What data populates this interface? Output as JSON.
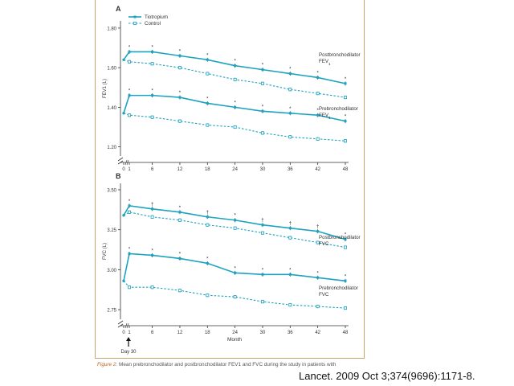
{
  "caption": {
    "figure_label": "Figure 2:",
    "text": "Mean prebronchodilator and postbronchodilator FEV1 and FVC during the study in patients with"
  },
  "citation": "Lancet. 2009 Oct 3;374(9696):1171-8.",
  "colors": {
    "series": "#1da3bf",
    "axis": "#333333",
    "text": "#333333"
  },
  "chart_data": [
    {
      "panel": "A",
      "type": "line",
      "ylabel": "FEV1 (L)",
      "yticks": [
        "1.20",
        "1.40",
        "1.60",
        "1.80"
      ],
      "ylim": [
        1.17,
        1.82
      ],
      "xlabel": "",
      "xtick_labels": [
        "0",
        "1",
        "6",
        "12",
        "18",
        "24",
        "30",
        "36",
        "42",
        "48"
      ],
      "legend": [
        {
          "name": "Tiotropium",
          "style": "solid"
        },
        {
          "name": "Control",
          "style": "dashed"
        }
      ],
      "legend_position": "top-left",
      "series": [
        {
          "legend": "Tiotropium",
          "group": "Postbronchodilator FEV1",
          "style": "solid",
          "x": [
            0,
            1,
            6,
            12,
            18,
            24,
            30,
            36,
            42,
            48
          ],
          "y": [
            1.64,
            1.68,
            1.68,
            1.66,
            1.64,
            1.61,
            1.59,
            1.57,
            1.55,
            1.52
          ],
          "markers": [
            "",
            "*",
            "*",
            "*",
            "*",
            "*",
            "*",
            "*",
            "*",
            "*"
          ]
        },
        {
          "legend": "Control",
          "group": "Postbronchodilator FEV1",
          "style": "dashed",
          "x": [
            0,
            1,
            6,
            12,
            18,
            24,
            30,
            36,
            42,
            48
          ],
          "y": [
            1.64,
            1.63,
            1.62,
            1.6,
            1.57,
            1.54,
            1.52,
            1.49,
            1.47,
            1.45
          ],
          "markers": [
            "",
            "",
            "",
            "",
            "",
            "",
            "",
            "",
            "",
            ""
          ]
        },
        {
          "legend": "Tiotropium",
          "group": "Prebronchodilator FEV1",
          "style": "solid",
          "x": [
            0,
            1,
            6,
            12,
            18,
            24,
            30,
            36,
            42,
            48
          ],
          "y": [
            1.37,
            1.46,
            1.46,
            1.45,
            1.42,
            1.4,
            1.38,
            1.37,
            1.36,
            1.33
          ],
          "markers": [
            "",
            "*",
            "*",
            "*",
            "*",
            "*",
            "*",
            "*",
            "*",
            "*"
          ]
        },
        {
          "legend": "Control",
          "group": "Prebronchodilator FEV1",
          "style": "dashed",
          "x": [
            0,
            1,
            6,
            12,
            18,
            24,
            30,
            36,
            42,
            48
          ],
          "y": [
            1.37,
            1.36,
            1.35,
            1.33,
            1.31,
            1.3,
            1.27,
            1.25,
            1.24,
            1.23
          ],
          "markers": [
            "",
            "",
            "",
            "",
            "",
            "",
            "",
            "",
            "",
            ""
          ]
        }
      ],
      "group_labels": [
        {
          "line1": "Postbronchodilator",
          "line2": "FEV",
          "sub": "1",
          "anchor_y": 1.52
        },
        {
          "line1": "Prebronchodilator",
          "line2": "FEV",
          "sub": "1",
          "anchor_y": 1.33
        }
      ]
    },
    {
      "panel": "B",
      "type": "line",
      "ylabel": "FVC (L)",
      "yticks": [
        "2.75",
        "3.00",
        "3.25",
        "3.50"
      ],
      "ylim": [
        2.71,
        3.52
      ],
      "xlabel": "Month",
      "xtick_labels": [
        "0",
        "1",
        "6",
        "12",
        "18",
        "24",
        "30",
        "36",
        "42",
        "48"
      ],
      "annotation": "Day 30",
      "series": [
        {
          "legend": "Tiotropium",
          "group": "Postbronchodilator FVC",
          "style": "solid",
          "x": [
            0,
            1,
            6,
            12,
            18,
            24,
            30,
            36,
            42,
            48
          ],
          "y": [
            3.34,
            3.4,
            3.38,
            3.36,
            3.33,
            3.31,
            3.28,
            3.26,
            3.24,
            3.19
          ],
          "markers": [
            "",
            "*",
            "†",
            "*",
            "†",
            "*",
            "†",
            "†",
            "†",
            "*"
          ]
        },
        {
          "legend": "Control",
          "group": "Postbronchodilator FVC",
          "style": "dashed",
          "x": [
            0,
            1,
            6,
            12,
            18,
            24,
            30,
            36,
            42,
            48
          ],
          "y": [
            3.34,
            3.36,
            3.33,
            3.31,
            3.28,
            3.26,
            3.23,
            3.2,
            3.17,
            3.14
          ],
          "markers": [
            "",
            "",
            "",
            "",
            "",
            "",
            "",
            "",
            "",
            ""
          ]
        },
        {
          "legend": "Tiotropium",
          "group": "Prebronchodilator FVC",
          "style": "solid",
          "x": [
            0,
            1,
            6,
            12,
            18,
            24,
            30,
            36,
            42,
            48
          ],
          "y": [
            2.93,
            3.1,
            3.09,
            3.07,
            3.04,
            2.98,
            2.97,
            2.97,
            2.95,
            2.93
          ],
          "markers": [
            "",
            "*",
            "*",
            "*",
            "*",
            "*",
            "*",
            "*",
            "*",
            "*"
          ]
        },
        {
          "legend": "Control",
          "group": "Prebronchodilator FVC",
          "style": "dashed",
          "x": [
            0,
            1,
            6,
            12,
            18,
            24,
            30,
            36,
            42,
            48
          ],
          "y": [
            2.93,
            2.89,
            2.89,
            2.87,
            2.84,
            2.83,
            2.8,
            2.78,
            2.77,
            2.76
          ],
          "markers": [
            "",
            "",
            "",
            "",
            "",
            "",
            "",
            "",
            "",
            ""
          ]
        }
      ],
      "group_labels": [
        {
          "line1": "Postbronchodilator",
          "line2": "FVC",
          "sub": "",
          "anchor_y": 3.17
        },
        {
          "line1": "Prebronchodilator",
          "line2": "FVC",
          "sub": "",
          "anchor_y": 2.85
        }
      ]
    }
  ]
}
